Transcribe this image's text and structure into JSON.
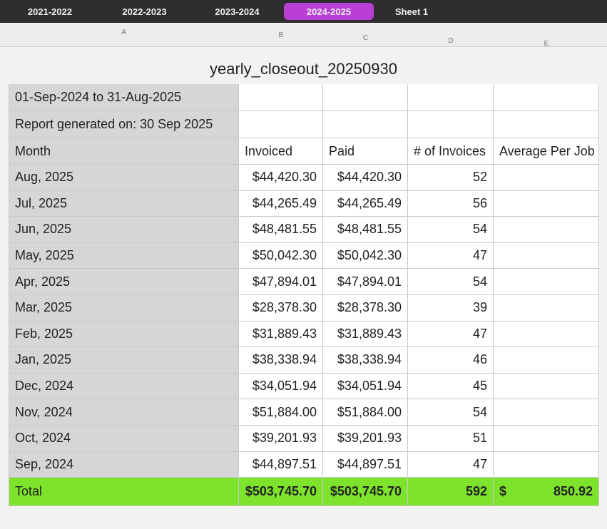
{
  "tabs": [
    "2021-2022",
    "2022-2023",
    "2023-2024",
    "2024-2025",
    "Sheet 1"
  ],
  "active_tab": 3,
  "column_letters": [
    "A",
    "B",
    "C",
    "D",
    "E"
  ],
  "title": "yearly_closeout_20250930",
  "table": {
    "info_rows": [
      "01-Sep-2024 to 31-Aug-2025",
      "Report generated on: 30 Sep 2025"
    ],
    "header": [
      "Month",
      "Invoiced",
      "Paid",
      "# of Invoices",
      "Average Per Job"
    ],
    "rows": [
      [
        "Aug, 2025",
        "$44,420.30",
        "$44,420.30",
        "52"
      ],
      [
        "Jul, 2025",
        "$44,265.49",
        "$44,265.49",
        "56"
      ],
      [
        "Jun, 2025",
        "$48,481.55",
        "$48,481.55",
        "54"
      ],
      [
        "May, 2025",
        "$50,042.30",
        "$50,042.30",
        "47"
      ],
      [
        "Apr, 2025",
        "$47,894.01",
        "$47,894.01",
        "54"
      ],
      [
        "Mar, 2025",
        "$28,378.30",
        "$28,378.30",
        "39"
      ],
      [
        "Feb, 2025",
        "$31,889.43",
        "$31,889.43",
        "47"
      ],
      [
        "Jan, 2025",
        "$38,338.94",
        "$38,338.94",
        "46"
      ],
      [
        "Dec, 2024",
        "$34,051.94",
        "$34,051.94",
        "45"
      ],
      [
        "Nov, 2024",
        "$51,884.00",
        "$51,884.00",
        "54"
      ],
      [
        "Oct, 2024",
        "$39,201.93",
        "$39,201.93",
        "51"
      ],
      [
        "Sep, 2024",
        "$44,897.51",
        "$44,897.51",
        "47"
      ]
    ],
    "total": {
      "label": "Total",
      "invoiced": "$503,745.70",
      "paid": "$503,745.70",
      "invoices": "592",
      "average_currency": "$",
      "average": "850.92"
    }
  }
}
